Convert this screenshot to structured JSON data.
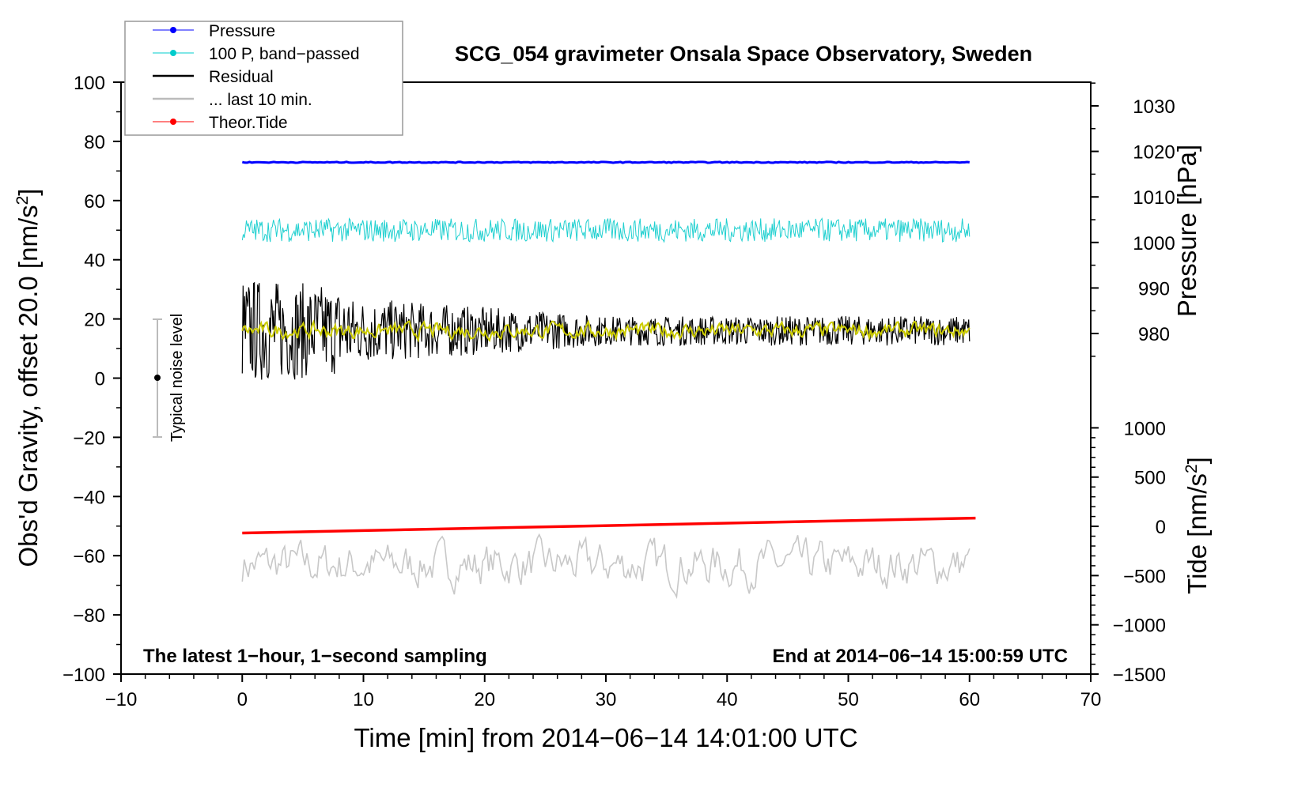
{
  "chart_data": {
    "type": "line",
    "title": "SCG_054 gravimeter Onsala Space Observatory, Sweden",
    "xlabel": "Time [min] from 2014−06−14 14:01:00 UTC",
    "ylabel_left": "Obs'd Gravity, offset 20.0 [nm/s",
    "ylabel_left_sup": "2",
    "ylabel_left_end": "]",
    "ylabel_right_pressure": "Pressure [hPa]",
    "ylabel_right_tide": "Tide [nm/s",
    "ylabel_right_tide_sup": "2",
    "ylabel_right_tide_end": "]",
    "xlim": [
      -10,
      70
    ],
    "ylim": [
      -100,
      100
    ],
    "x_ticks": [
      "−10",
      "0",
      "10",
      "20",
      "30",
      "40",
      "50",
      "60",
      "70"
    ],
    "x_tick_values": [
      -10,
      0,
      10,
      20,
      30,
      40,
      50,
      60,
      70
    ],
    "y_ticks": [
      "−100",
      "−80",
      "−60",
      "−40",
      "−20",
      "0",
      "20",
      "40",
      "60",
      "80",
      "100"
    ],
    "y_tick_values": [
      -100,
      -80,
      -60,
      -40,
      -20,
      0,
      20,
      40,
      60,
      80,
      100
    ],
    "pressure_axis": {
      "ticks": [
        "980",
        "990",
        "1000",
        "1010",
        "1020",
        "1030"
      ],
      "values": [
        980,
        990,
        1000,
        1010,
        1020,
        1030
      ],
      "ref_value": 1030,
      "ref_gravity": 92,
      "hpa_per_gravity_unit": 0.65
    },
    "tide_axis": {
      "ticks": [
        "−1500",
        "−1000",
        "−500",
        "0",
        "500",
        "1000"
      ],
      "values": [
        -1500,
        -1000,
        -500,
        0,
        500,
        1000
      ],
      "lim": [
        -1500,
        1000
      ],
      "gravity_at_min": -100,
      "gravity_at_max": -16.8
    },
    "legend": [
      {
        "label": "Pressure",
        "color": "#0000ff",
        "marker": true
      },
      {
        "label": "100 P, band−passed",
        "color": "#00cccc",
        "marker": true
      },
      {
        "label": "Residual",
        "color": "#000000",
        "marker": false
      },
      {
        "label": "... last 10 min.",
        "color": "#bbbbbb",
        "marker": false
      },
      {
        "label": "Theor.Tide",
        "color": "#ff0000",
        "marker": true
      }
    ],
    "series": [
      {
        "name": "Pressure",
        "unit": "hPa",
        "x_range": [
          0,
          60
        ],
        "mean": 1017.6,
        "noise": 0.1
      },
      {
        "name": "100 P, band-passed",
        "unit": "nm/s2",
        "x_range": [
          0,
          60
        ],
        "mean": 50,
        "noise": 4
      },
      {
        "name": "Residual",
        "unit": "nm/s2",
        "x_range": [
          0,
          60
        ],
        "mean": 16,
        "noise_start": 14,
        "noise_end": 5
      },
      {
        "name": "Residual smoothed",
        "unit": "nm/s2",
        "x_range": [
          0,
          60
        ],
        "mean": 16,
        "noise": 2.5,
        "color": "#cccc00"
      },
      {
        "name": "... last 10 min.",
        "unit": "nm/s2",
        "x_range": [
          0,
          60
        ],
        "mean": -63,
        "noise": 4.5
      },
      {
        "name": "Theor.Tide",
        "unit": "nm/s2",
        "x": [
          0,
          60.5
        ],
        "y": [
          -68,
          84
        ]
      }
    ],
    "noise_bar": {
      "label": "Typical noise level",
      "x": -7,
      "center": 0,
      "range": [
        -20,
        20
      ]
    },
    "annotation_left": "The latest 1−hour, 1−second sampling",
    "annotation_right": "End at 2014−06−14 15:00:59 UTC"
  }
}
